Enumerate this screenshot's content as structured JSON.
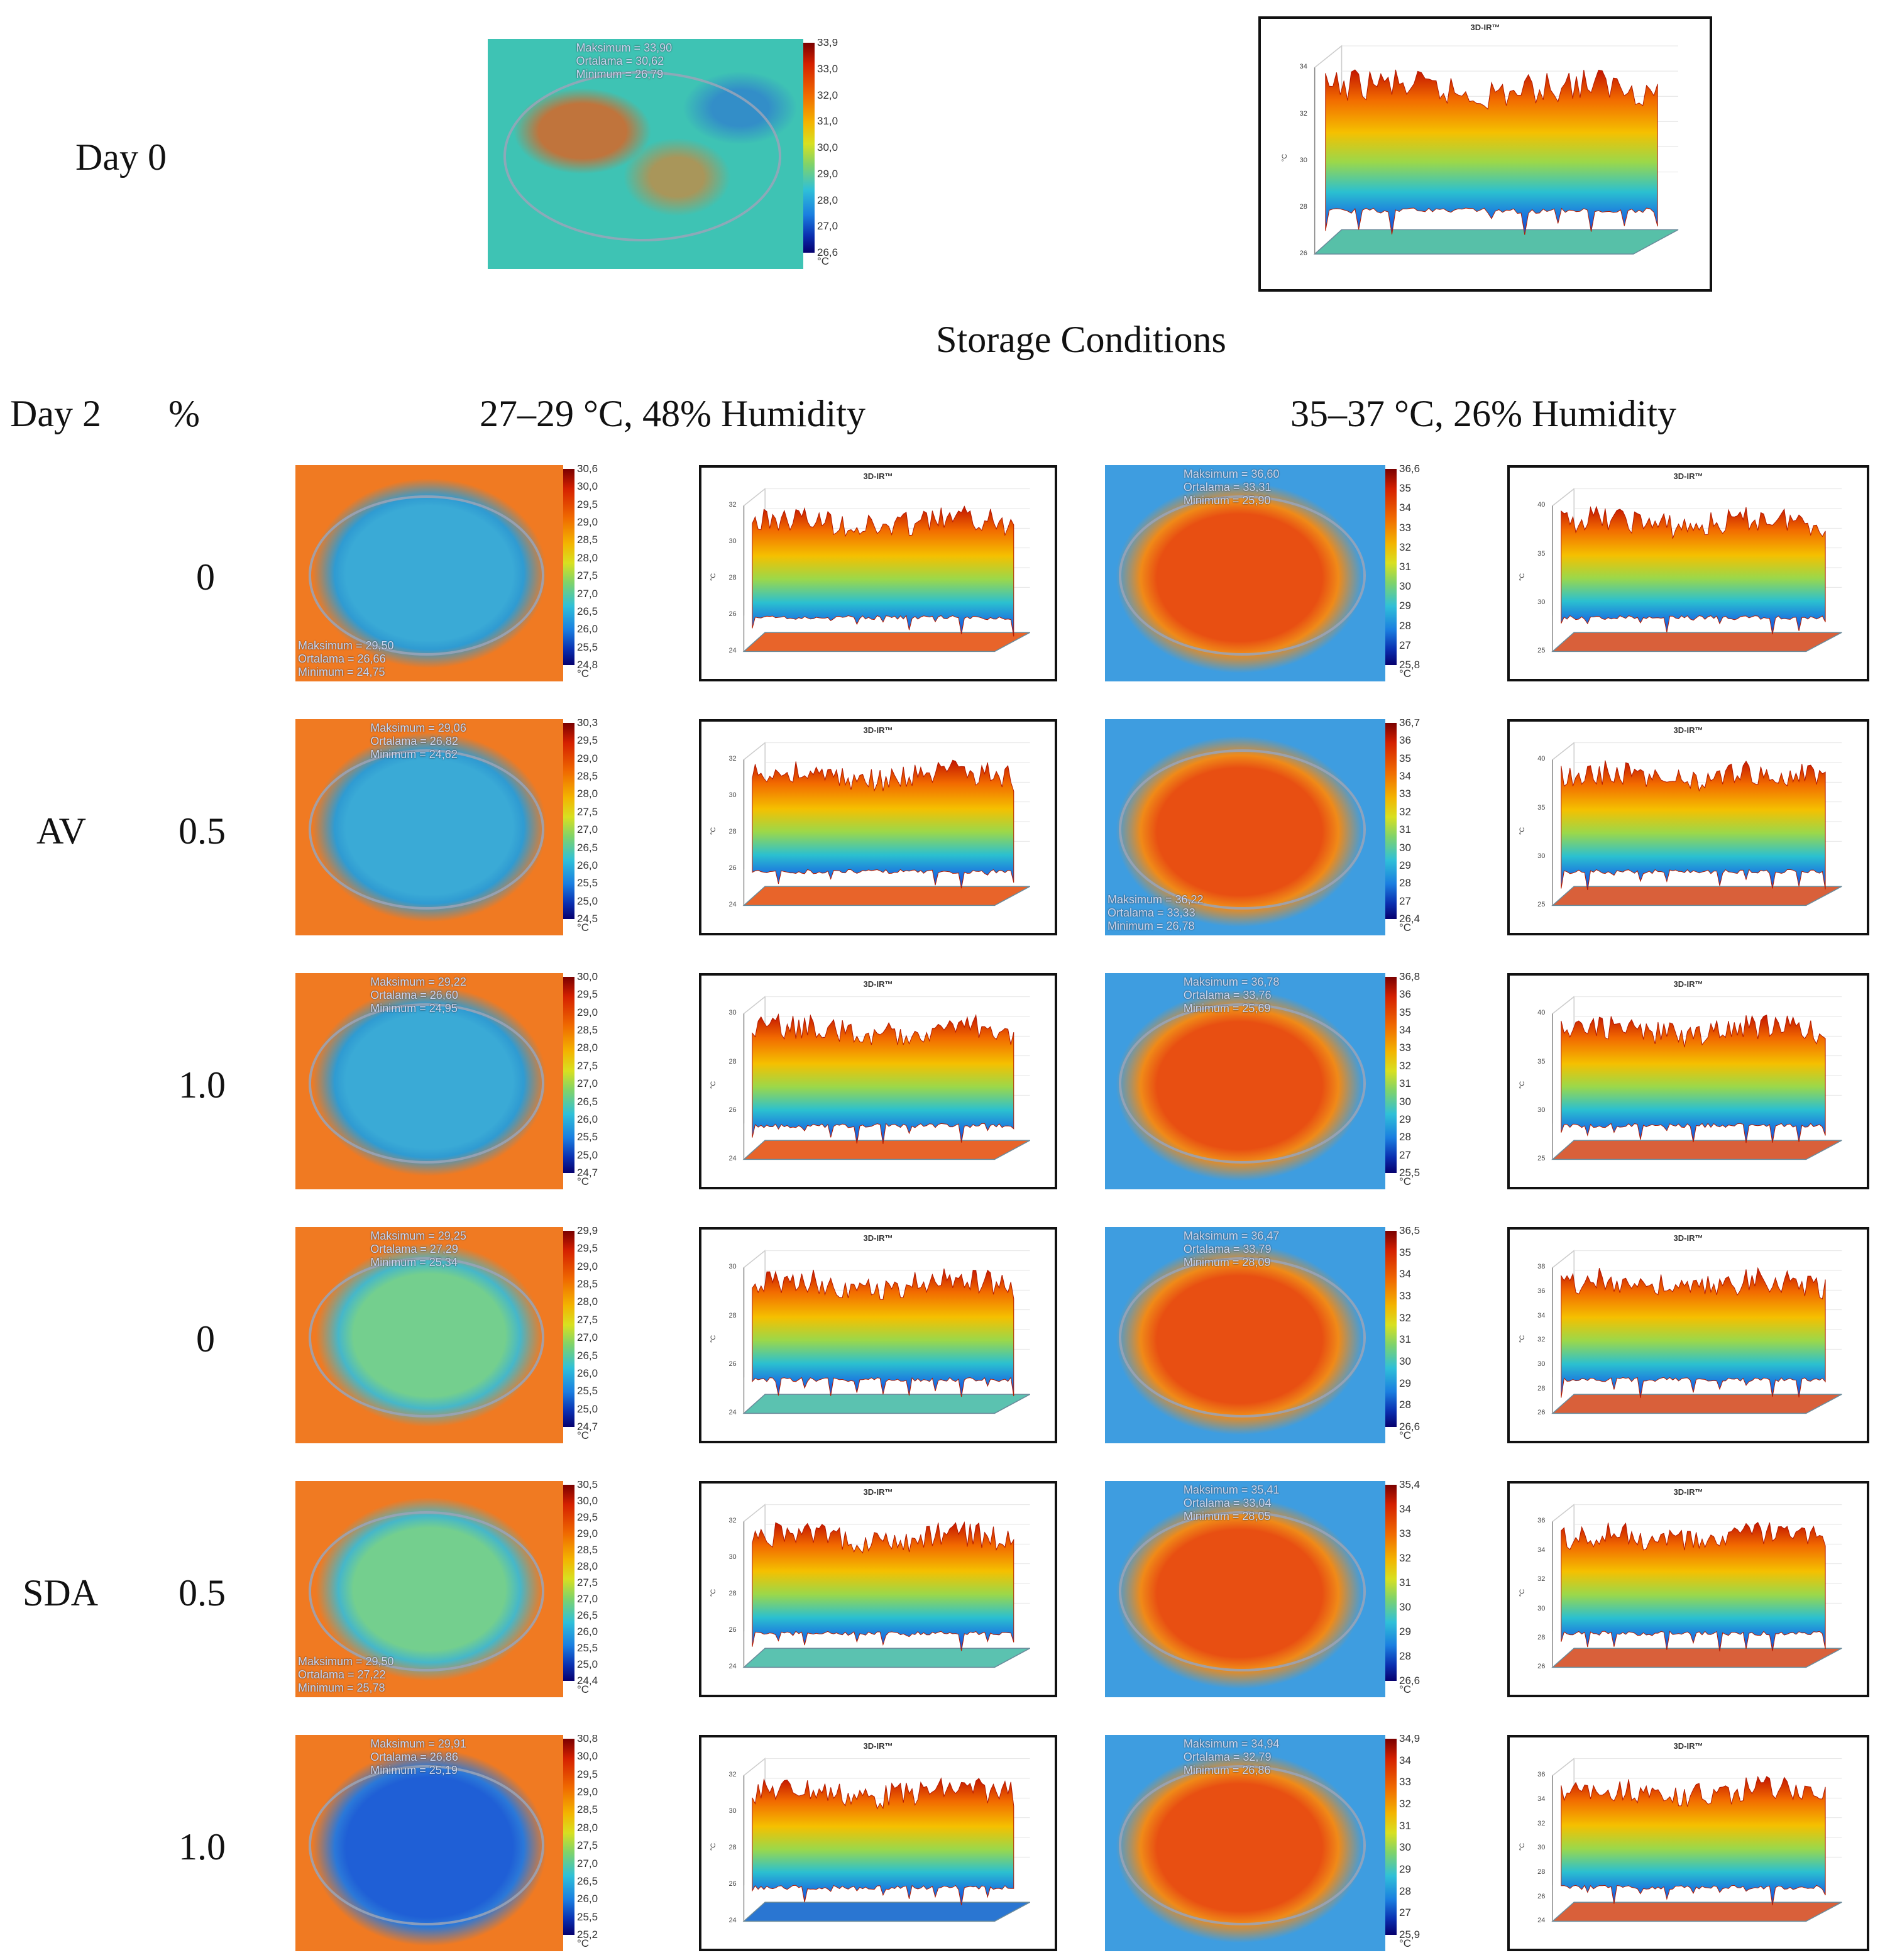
{
  "labels": {
    "day0": "Day 0",
    "storage_conditions": "Storage Conditions",
    "day2": "Day 2",
    "percent": "%",
    "cond_a": "27–29 °C, 48% Humidity",
    "cond_b": "35–37 °C, 26% Humidity",
    "group_av": "AV",
    "group_sda": "SDA",
    "pct_0": "0",
    "pct_05": "0.5",
    "pct_10": "1.0",
    "pct_0b": "0",
    "pct_05b": "0.5",
    "pct_10b": "1.0"
  },
  "panel_title": "3D-IR™",
  "unit": "°C",
  "stat_labels": {
    "max": "Maksimum =",
    "avg": "Ortalama =",
    "min": "Minimum ="
  },
  "thermals": {
    "d0": {
      "ticks": [
        "33,9",
        "33,0",
        "32,0",
        "31,0",
        "30,0",
        "29,0",
        "28,0",
        "27,0",
        "26,6"
      ],
      "stats": {
        "max": "33,90",
        "avg": "30,62",
        "min": "26,79"
      }
    },
    "a1": {
      "ticks": [
        "30,6",
        "30,0",
        "29,5",
        "29,0",
        "28,5",
        "28,0",
        "27,5",
        "27,0",
        "26,5",
        "26,0",
        "25,5",
        "24,8"
      ],
      "stats": {
        "max": "29,50",
        "avg": "26,66",
        "min": "24,75"
      }
    },
    "b1": {
      "ticks": [
        "36,6",
        "35",
        "34",
        "33",
        "32",
        "31",
        "30",
        "29",
        "28",
        "27",
        "25,8"
      ],
      "stats": {
        "max": "36,60",
        "avg": "33,31",
        "min": "25,90"
      }
    },
    "a2": {
      "ticks": [
        "30,3",
        "29,5",
        "29,0",
        "28,5",
        "28,0",
        "27,5",
        "27,0",
        "26,5",
        "26,0",
        "25,5",
        "25,0",
        "24,5"
      ],
      "stats": {
        "max": "29,06",
        "avg": "26,82",
        "min": "24,62"
      }
    },
    "b2": {
      "ticks": [
        "36,7",
        "36",
        "35",
        "34",
        "33",
        "32",
        "31",
        "30",
        "29",
        "28",
        "27",
        "26,4"
      ],
      "stats": {
        "max": "36,22",
        "avg": "33,33",
        "min": "26,78"
      }
    },
    "a3": {
      "ticks": [
        "30,0",
        "29,5",
        "29,0",
        "28,5",
        "28,0",
        "27,5",
        "27,0",
        "26,5",
        "26,0",
        "25,5",
        "25,0",
        "24,7"
      ],
      "stats": {
        "max": "29,22",
        "avg": "26,60",
        "min": "24,95"
      }
    },
    "b3": {
      "ticks": [
        "36,8",
        "36",
        "35",
        "34",
        "33",
        "32",
        "31",
        "30",
        "29",
        "28",
        "27",
        "25,5"
      ],
      "stats": {
        "max": "36,78",
        "avg": "33,76",
        "min": "25,69"
      }
    },
    "a4": {
      "ticks": [
        "29,9",
        "29,5",
        "29,0",
        "28,5",
        "28,0",
        "27,5",
        "27,0",
        "26,5",
        "26,0",
        "25,5",
        "25,0",
        "24,7"
      ],
      "stats": {
        "max": "29,25",
        "avg": "27,29",
        "min": "25,34"
      }
    },
    "b4": {
      "ticks": [
        "36,5",
        "35",
        "34",
        "33",
        "32",
        "31",
        "30",
        "29",
        "28",
        "26,6"
      ],
      "stats": {
        "max": "36,47",
        "avg": "33,79",
        "min": "28,09"
      }
    },
    "a5": {
      "ticks": [
        "30,5",
        "30,0",
        "29,5",
        "29,0",
        "28,5",
        "28,0",
        "27,5",
        "27,0",
        "26,5",
        "26,0",
        "25,5",
        "25,0",
        "24,4"
      ],
      "stats": {
        "max": "29,50",
        "avg": "27,22",
        "min": "25,78"
      }
    },
    "b5": {
      "ticks": [
        "35,4",
        "34",
        "33",
        "32",
        "31",
        "30",
        "29",
        "28",
        "26,6"
      ],
      "stats": {
        "max": "35,41",
        "avg": "33,04",
        "min": "28,05"
      }
    },
    "a6": {
      "ticks": [
        "30,8",
        "30,0",
        "29,5",
        "29,0",
        "28,5",
        "28,0",
        "27,5",
        "27,0",
        "26,5",
        "26,0",
        "25,5",
        "25,2"
      ],
      "stats": {
        "max": "29,91",
        "avg": "26,86",
        "min": "25,19"
      }
    },
    "b6": {
      "ticks": [
        "34,9",
        "34",
        "33",
        "32",
        "31",
        "30",
        "29",
        "28",
        "27",
        "25,9"
      ],
      "stats": {
        "max": "34,94",
        "avg": "32,79",
        "min": "26,86"
      }
    }
  },
  "panels3d": {
    "d0": {
      "yticks": [
        "34",
        "32",
        "30",
        "28",
        "26"
      ],
      "ylabel": "°C"
    },
    "a1": {
      "yticks": [
        "32",
        "30",
        "28",
        "26",
        "24"
      ],
      "ylabel": "°C"
    },
    "b1": {
      "yticks": [
        "40",
        "35",
        "30",
        "25"
      ],
      "ylabel": "°C"
    },
    "a2": {
      "yticks": [
        "32",
        "30",
        "28",
        "26",
        "24"
      ],
      "ylabel": "°C"
    },
    "b2": {
      "yticks": [
        "40",
        "35",
        "30",
        "25"
      ],
      "ylabel": "°C"
    },
    "a3": {
      "yticks": [
        "30",
        "28",
        "26",
        "24"
      ],
      "ylabel": "°C"
    },
    "b3": {
      "yticks": [
        "40",
        "35",
        "30",
        "25"
      ],
      "ylabel": "°C"
    },
    "a4": {
      "yticks": [
        "30",
        "28",
        "26",
        "24"
      ],
      "ylabel": "°C"
    },
    "b4": {
      "yticks": [
        "38",
        "36",
        "34",
        "32",
        "30",
        "28",
        "26"
      ],
      "ylabel": "°C"
    },
    "a5": {
      "yticks": [
        "32",
        "30",
        "28",
        "26",
        "24"
      ],
      "ylabel": "°C"
    },
    "b5": {
      "yticks": [
        "36",
        "34",
        "32",
        "30",
        "28",
        "26"
      ],
      "ylabel": "°C"
    },
    "a6": {
      "yticks": [
        "32",
        "30",
        "28",
        "26",
        "24"
      ],
      "ylabel": "°C"
    },
    "b6": {
      "yticks": [
        "36",
        "34",
        "32",
        "30",
        "28",
        "26",
        "24"
      ],
      "ylabel": "°C"
    }
  }
}
